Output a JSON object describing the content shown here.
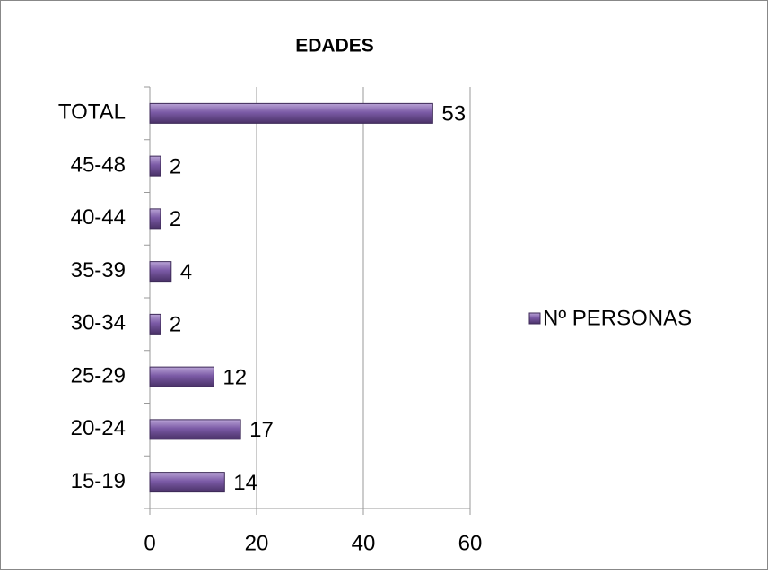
{
  "chart_data": {
    "type": "bar",
    "orientation": "horizontal",
    "title": "EDADES",
    "categories": [
      "15-19",
      "20-24",
      "25-29",
      "30-34",
      "35-39",
      "40-44",
      "45-48",
      "TOTAL"
    ],
    "series": [
      {
        "name": "Nº PERSONAS",
        "color": "#7b5aa6",
        "values": [
          14,
          17,
          12,
          2,
          4,
          2,
          2,
          53
        ]
      }
    ],
    "xlim": [
      0,
      60
    ],
    "xticks": [
      0,
      20,
      40,
      60
    ],
    "grid": true,
    "legend": "right"
  }
}
